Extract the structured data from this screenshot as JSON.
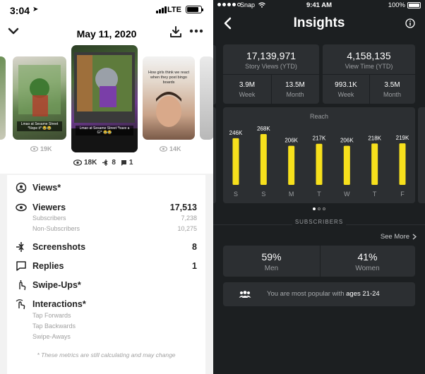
{
  "left": {
    "status": {
      "time": "3:04",
      "network": "LTE"
    },
    "header": {
      "date": "May 11, 2020"
    },
    "stories": [
      {
        "caption": "Lmao at Sesame Street *Nope it* 😂😂",
        "views": "19K"
      },
      {
        "caption": "Lmao at Sesame Street *have a G!* 😂😂",
        "views": "18K",
        "screenshots": "8",
        "replies": "1"
      },
      {
        "caption": "How girls think we react when they post bingo boards",
        "views": "14K"
      }
    ],
    "metrics": {
      "views_label": "Views*",
      "viewers_label": "Viewers",
      "viewers_value": "17,513",
      "subscribers_label": "Subscribers",
      "subscribers_value": "7,238",
      "nonsubscribers_label": "Non-Subscribers",
      "nonsubscribers_value": "10,275",
      "screenshots_label": "Screenshots",
      "screenshots_value": "8",
      "replies_label": "Replies",
      "replies_value": "1",
      "swipeups_label": "Swipe-Ups*",
      "interactions_label": "Interactions*",
      "tap_forwards": "Tap Forwards",
      "tap_backwards": "Tap Backwards",
      "swipe_aways": "Swipe-Aways",
      "footnote": "* These metrics are still calculating and may change"
    }
  },
  "right": {
    "status": {
      "carrier": "Snap",
      "time": "9:41 AM",
      "battery": "100%"
    },
    "header": {
      "title": "Insights"
    },
    "story_views": {
      "value": "17,139,971",
      "label": "Story Views (YTD)"
    },
    "view_time": {
      "value": "4,158,135",
      "label": "View Time (YTD)"
    },
    "sv_week": {
      "value": "3.9M",
      "label": "Week"
    },
    "sv_month": {
      "value": "13.5M",
      "label": "Month"
    },
    "vt_week": {
      "value": "993.1K",
      "label": "Week"
    },
    "vt_month": {
      "value": "3.5M",
      "label": "Month"
    },
    "subscribers_heading": "SUBSCRIBERS",
    "see_more": "See More",
    "men": {
      "value": "59%",
      "label": "Men"
    },
    "women": {
      "value": "41%",
      "label": "Women"
    },
    "popular": {
      "prefix": "You are most popular with",
      "highlight": "ages 21-24"
    },
    "colors": {
      "bar": "#f7e01c",
      "panel": "#2c2f32",
      "bg": "#1c1f21"
    }
  },
  "chart_data": {
    "type": "bar",
    "title": "Reach",
    "categories": [
      "S",
      "S",
      "M",
      "T",
      "W",
      "T",
      "F"
    ],
    "values": [
      246000,
      268000,
      206000,
      217000,
      206000,
      218000,
      219000
    ],
    "labels": [
      "246K",
      "268K",
      "206K",
      "217K",
      "206K",
      "218K",
      "219K"
    ],
    "xlabel": "",
    "ylabel": "",
    "grid": false
  }
}
